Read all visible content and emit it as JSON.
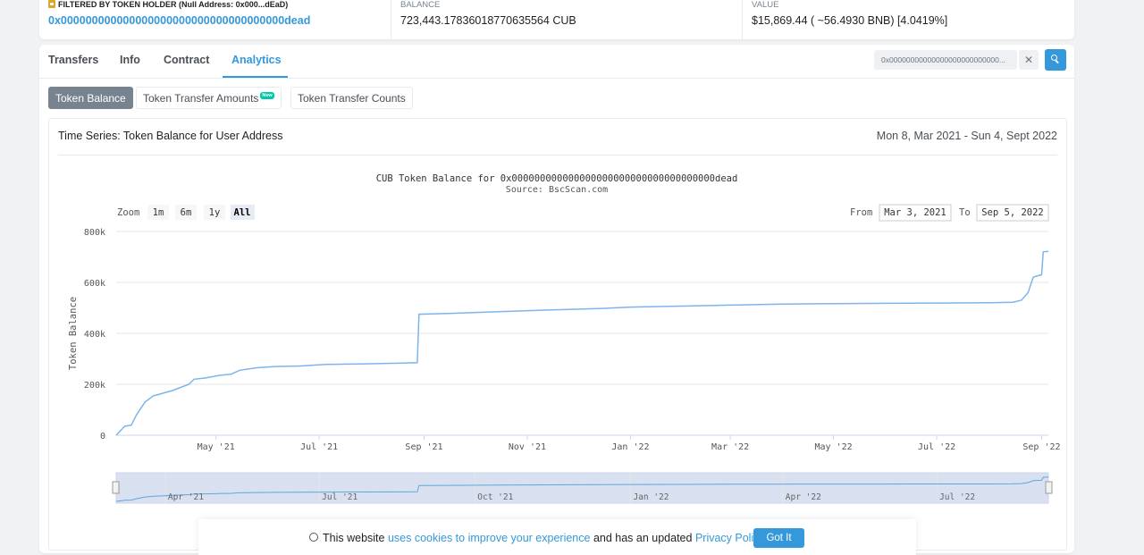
{
  "holder": {
    "filter_label": "FILTERED BY TOKEN HOLDER (Null Address: 0x000...dEaD)",
    "address": "0x000000000000000000000000000000000000dead",
    "balance_label": "BALANCE",
    "balance_value": "723,443.17836018770635564 CUB",
    "value_label": "VALUE",
    "value_value": "$15,869.44 ( ~56.4930 BNB) [4.0419%]"
  },
  "tabs": [
    "Transfers",
    "Info",
    "Contract",
    "Analytics"
  ],
  "active_tab": "Analytics",
  "search": {
    "value": "0x000000000000000000000000000000000000dead",
    "display": "0x00000000000000000000000000..."
  },
  "subtabs": {
    "token_balance": "Token Balance",
    "transfer_amounts": "Token Transfer Amounts",
    "new_badge": "New",
    "transfer_counts": "Token Transfer Counts"
  },
  "chart_header": {
    "title": "Time Series: Token Balance for User Address",
    "range": "Mon 8, Mar 2021 - Sun 4, Sept 2022"
  },
  "chart_controls": {
    "zoom_label": "Zoom",
    "zoom_options": [
      "1m",
      "6m",
      "1y",
      "All"
    ],
    "zoom_selected": "All",
    "from_label": "From",
    "from_value": "Mar 3, 2021",
    "to_label": "To",
    "to_value": "Sep 5, 2022"
  },
  "chart_data": {
    "type": "line",
    "title": "CUB Token Balance for 0x000000000000000000000000000000000000dead",
    "subtitle": "Source: BscScan.com",
    "xlabel": "",
    "ylabel": "Token Balance",
    "ylim": [
      0,
      800000
    ],
    "yticks": [
      "0",
      "200k",
      "400k",
      "600k",
      "800k"
    ],
    "xlim": [
      "2021-03-03",
      "2022-09-05"
    ],
    "xticks": [
      {
        "label": "May '21",
        "date": "2021-05-01"
      },
      {
        "label": "Jul '21",
        "date": "2021-07-01"
      },
      {
        "label": "Sep '21",
        "date": "2021-09-01"
      },
      {
        "label": "Nov '21",
        "date": "2021-11-01"
      },
      {
        "label": "Jan '22",
        "date": "2022-01-01"
      },
      {
        "label": "Mar '22",
        "date": "2022-03-01"
      },
      {
        "label": "May '22",
        "date": "2022-05-01"
      },
      {
        "label": "Jul '22",
        "date": "2022-07-01"
      },
      {
        "label": "Sep '22",
        "date": "2022-09-01"
      }
    ],
    "navigator_ticks": [
      {
        "label": "Apr '21",
        "date": "2021-04-01"
      },
      {
        "label": "Jul '21",
        "date": "2021-07-01"
      },
      {
        "label": "Oct '21",
        "date": "2021-10-01"
      },
      {
        "label": "Jan '22",
        "date": "2022-01-01"
      },
      {
        "label": "Apr '22",
        "date": "2022-04-01"
      },
      {
        "label": "Jul '22",
        "date": "2022-07-01"
      }
    ],
    "grid": true,
    "series": [
      {
        "color": "#7cb5ec",
        "x": [
          "2021-03-03",
          "2021-03-08",
          "2021-03-12",
          "2021-03-15",
          "2021-03-20",
          "2021-03-25",
          "2021-03-28",
          "2021-04-05",
          "2021-04-15",
          "2021-04-18",
          "2021-04-25",
          "2021-05-03",
          "2021-05-10",
          "2021-05-15",
          "2021-05-25",
          "2021-06-05",
          "2021-06-20",
          "2021-07-05",
          "2021-07-25",
          "2021-08-20",
          "2021-08-28",
          "2021-08-29",
          "2021-09-15",
          "2021-10-15",
          "2021-11-15",
          "2021-12-15",
          "2022-01-01",
          "2022-02-01",
          "2022-03-01",
          "2022-04-01",
          "2022-05-01",
          "2022-06-01",
          "2022-07-01",
          "2022-08-01",
          "2022-08-15",
          "2022-08-20",
          "2022-08-24",
          "2022-08-27",
          "2022-08-29",
          "2022-09-01",
          "2022-09-02",
          "2022-09-05"
        ],
        "y": [
          0,
          35000,
          40000,
          80000,
          130000,
          155000,
          160000,
          175000,
          200000,
          220000,
          225000,
          235000,
          240000,
          255000,
          265000,
          270000,
          272000,
          278000,
          280000,
          283000,
          285000,
          475000,
          478000,
          485000,
          492000,
          498000,
          503000,
          507000,
          511000,
          515000,
          517000,
          518000,
          519000,
          520000,
          522000,
          530000,
          560000,
          620000,
          625000,
          630000,
          720000,
          722000
        ]
      }
    ]
  },
  "cookie": {
    "text_before": "This website ",
    "link1": "uses cookies to improve your experience",
    "text_middle": " and has an updated ",
    "link2": "Privacy Policy",
    "text_after": ".",
    "button": "Got It"
  }
}
